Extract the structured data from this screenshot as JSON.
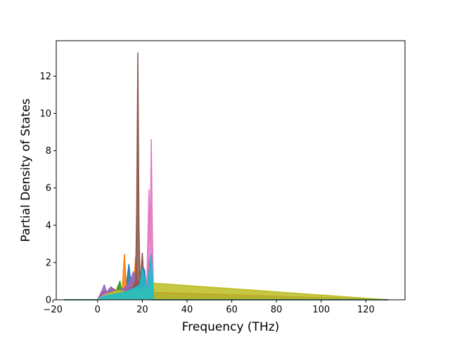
{
  "chart_data": {
    "type": "line",
    "title": "",
    "xlabel": "Frequency (THz)",
    "ylabel": "Partial Density of States",
    "xlim": [
      -18.5,
      137.5
    ],
    "ylim": [
      0,
      13.9
    ],
    "xticks": [
      -20,
      0,
      20,
      40,
      60,
      80,
      100,
      120
    ],
    "yticks": [
      0,
      2,
      4,
      6,
      8,
      10,
      12
    ],
    "x_range_of_data": [
      -15,
      130
    ],
    "grid": false,
    "legend": "none",
    "fill_under_curves": true,
    "series": [
      {
        "color": "#1f77b4",
        "x": [
          -15,
          0,
          3,
          5,
          8,
          11,
          13,
          14,
          15,
          16,
          17,
          19,
          20,
          21,
          22,
          24,
          130
        ],
        "y": [
          0,
          0,
          0.3,
          0.1,
          0.5,
          0.2,
          0.9,
          1.9,
          0.7,
          1.2,
          0.4,
          1.1,
          1.8,
          1.6,
          0.3,
          0,
          0
        ]
      },
      {
        "color": "#ff7f0e",
        "x": [
          -15,
          0,
          2,
          4,
          6,
          8,
          10,
          11,
          12,
          13,
          15,
          16,
          17,
          18,
          19,
          20,
          22,
          23,
          24,
          25,
          130
        ],
        "y": [
          0,
          0,
          0.4,
          0.2,
          0.6,
          0.3,
          0.8,
          0.5,
          2.45,
          0.4,
          1.0,
          0.6,
          2.3,
          0.5,
          1.1,
          0.4,
          0.6,
          0.3,
          1.0,
          0,
          0
        ]
      },
      {
        "color": "#2ca02c",
        "x": [
          -15,
          0,
          2,
          5,
          8,
          10,
          11,
          13,
          15,
          18,
          20,
          22,
          24,
          130
        ],
        "y": [
          0,
          0,
          0.3,
          0.5,
          0.4,
          1.0,
          0.3,
          0.6,
          0.5,
          0.7,
          0.4,
          0.5,
          0.3,
          0
        ]
      },
      {
        "color": "#d62728",
        "x": [
          -15,
          0,
          3,
          5,
          7,
          9,
          12,
          15,
          18,
          20,
          22,
          23,
          24,
          130
        ],
        "y": [
          0,
          0,
          0.5,
          0.3,
          0.6,
          0.4,
          0.5,
          0.7,
          0.5,
          0.4,
          0.6,
          2.2,
          0.4,
          0
        ]
      },
      {
        "color": "#9467bd",
        "x": [
          -15,
          0,
          2,
          3,
          4,
          6,
          8,
          10,
          14,
          16,
          19,
          21,
          24,
          130
        ],
        "y": [
          0,
          0,
          0.5,
          0.8,
          0.4,
          0.7,
          0.4,
          0.5,
          0.8,
          1.5,
          0.6,
          0.5,
          0.3,
          0
        ]
      },
      {
        "color": "#8c564b",
        "x": [
          -15,
          0,
          5,
          10,
          15,
          17,
          17.5,
          18,
          18.5,
          19,
          20,
          21,
          22,
          130
        ],
        "y": [
          0,
          0,
          0.3,
          0.4,
          0.5,
          1.0,
          5.0,
          13.25,
          4.0,
          0.8,
          2.5,
          0.4,
          0.2,
          0
        ]
      },
      {
        "color": "#e377c2",
        "x": [
          -15,
          0,
          3,
          8,
          12,
          16,
          20,
          22,
          22.5,
          23,
          23.5,
          24,
          24.5,
          25,
          130
        ],
        "y": [
          0,
          0,
          0.3,
          0.4,
          0.3,
          0.5,
          0.6,
          0.8,
          3.5,
          5.9,
          3.0,
          8.6,
          3.5,
          0.3,
          0
        ]
      },
      {
        "color": "#7f7f7f",
        "x": [
          -15,
          0,
          5,
          10,
          15,
          20,
          24,
          130
        ],
        "y": [
          0,
          0,
          0.2,
          0.4,
          0.3,
          0.5,
          0.3,
          0
        ]
      },
      {
        "color": "#bcbd22",
        "x": [
          -15,
          0,
          4,
          9,
          14,
          17,
          20,
          23,
          24,
          130
        ],
        "y": [
          0,
          0,
          0.3,
          0.5,
          0.4,
          0.6,
          0.5,
          0.7,
          0.9,
          0
        ]
      },
      {
        "color": "#17becf",
        "x": [
          -15,
          0,
          3,
          8,
          12,
          16,
          19,
          20,
          22,
          24,
          25,
          130
        ],
        "y": [
          0,
          0,
          0.2,
          0.3,
          0.4,
          0.6,
          0.8,
          1.7,
          0.5,
          2.45,
          0,
          0
        ]
      }
    ]
  }
}
